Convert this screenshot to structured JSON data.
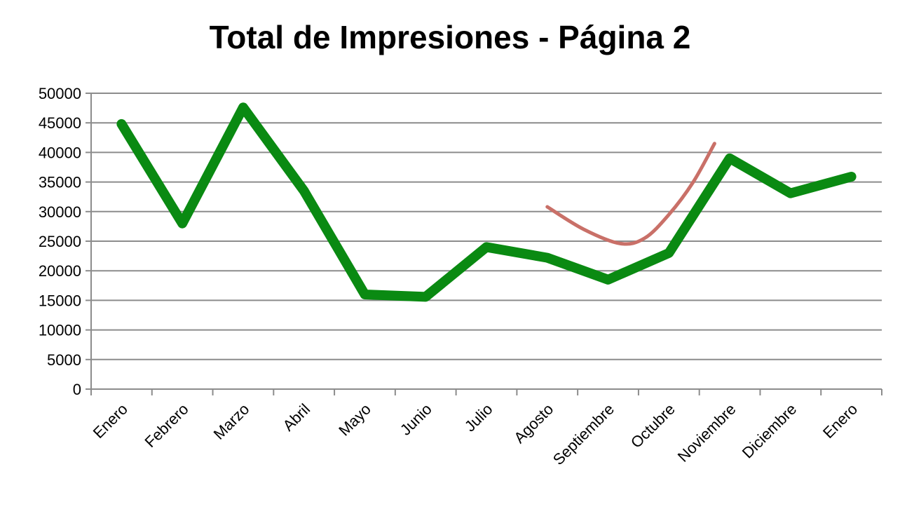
{
  "chart_data": {
    "type": "line",
    "title": "Total de Impresiones - Página 2",
    "xlabel": "",
    "ylabel": "",
    "ylim": [
      0,
      50000
    ],
    "ytick_step": 5000,
    "grid": true,
    "legend": "none",
    "categories": [
      "Enero",
      "Febrero",
      "Marzo",
      "Abril",
      "Mayo",
      "Junio",
      "Julio",
      "Agosto",
      "Septiembre",
      "Octubre",
      "Noviembre",
      "Diciembre",
      "Enero"
    ],
    "series": [
      {
        "color": "#0a8a12",
        "values": [
          44800,
          28000,
          47600,
          33500,
          16000,
          15600,
          24000,
          22200,
          18500,
          23000,
          39000,
          33100,
          35900
        ]
      }
    ],
    "annotations": [
      {
        "type": "trend-curve",
        "color": "#c97068",
        "points": [
          [
            7.0,
            30800
          ],
          [
            7.6,
            27000
          ],
          [
            8.2,
            24600
          ],
          [
            8.6,
            25500
          ],
          [
            9.0,
            29500
          ],
          [
            9.4,
            35000
          ],
          [
            9.75,
            41500
          ]
        ]
      }
    ]
  }
}
